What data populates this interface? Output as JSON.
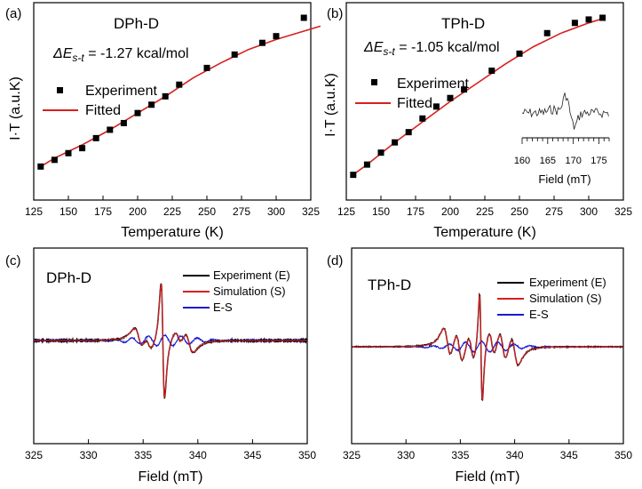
{
  "chart_data": [
    {
      "type": "scatter",
      "panel_label": "(a)",
      "title": "DPh-D",
      "annotation_prefix": "ΔE",
      "annotation_sub": "s-t",
      "annotation_value": " = -1.27 kcal/mol",
      "xlabel": "Temperature (K)",
      "ylabel": "I·T (a.u.K)",
      "xlim": [
        125,
        325
      ],
      "ylim": [
        0,
        1
      ],
      "xticks": [
        125,
        150,
        175,
        200,
        225,
        250,
        275,
        300,
        325
      ],
      "xtick_labels": [
        "125",
        "150",
        "175",
        "200",
        "225",
        "250",
        "275",
        "300",
        "325"
      ],
      "legend": [
        "Experiment",
        "Fitted"
      ],
      "series": [
        {
          "name": "Experiment",
          "x": [
            130,
            140,
            150,
            160,
            170,
            180,
            190,
            200,
            210,
            220,
            230,
            250,
            270,
            290,
            300,
            320
          ],
          "y": [
            0.11,
            0.15,
            0.19,
            0.22,
            0.28,
            0.33,
            0.37,
            0.43,
            0.48,
            0.53,
            0.6,
            0.7,
            0.78,
            0.85,
            0.89,
            1.0
          ]
        },
        {
          "name": "Fitted",
          "x": [
            128,
            140,
            160,
            180,
            200,
            220,
            240,
            260,
            280,
            300,
            320,
            332
          ],
          "y": [
            0.1,
            0.16,
            0.24,
            0.33,
            0.43,
            0.53,
            0.64,
            0.73,
            0.81,
            0.87,
            0.92,
            0.95
          ]
        }
      ]
    },
    {
      "type": "scatter",
      "panel_label": "(b)",
      "title": "TPh-D",
      "annotation_prefix": "ΔE",
      "annotation_sub": "s-t",
      "annotation_value": " = -1.05 kcal/mol",
      "xlabel": "Temperature (K)",
      "ylabel": "I·T (a.u.K)",
      "xlim": [
        125,
        325
      ],
      "ylim": [
        0,
        1
      ],
      "xticks": [
        125,
        150,
        175,
        200,
        225,
        250,
        275,
        300,
        325
      ],
      "xtick_labels": [
        "125",
        "150",
        "175",
        "200",
        "225",
        "250",
        "275",
        "300",
        "325"
      ],
      "legend": [
        "Experiment",
        "Fitted"
      ],
      "series": [
        {
          "name": "Experiment",
          "x": [
            130,
            140,
            150,
            160,
            170,
            180,
            190,
            200,
            210,
            230,
            250,
            270,
            290,
            300,
            310
          ],
          "y": [
            0.08,
            0.14,
            0.21,
            0.27,
            0.33,
            0.41,
            0.48,
            0.53,
            0.58,
            0.69,
            0.79,
            0.91,
            0.97,
            0.99,
            1.0
          ]
        },
        {
          "name": "Fitted",
          "x": [
            128,
            140,
            160,
            180,
            200,
            220,
            240,
            260,
            280,
            300,
            312
          ],
          "y": [
            0.07,
            0.14,
            0.27,
            0.39,
            0.51,
            0.62,
            0.73,
            0.83,
            0.91,
            0.97,
            1.0
          ]
        }
      ],
      "inset": {
        "xlabel": "Field (mT)",
        "xlim": [
          160,
          177
        ],
        "xticks": [
          160,
          165,
          170,
          175
        ],
        "xtick_labels": [
          "160",
          "165",
          "170",
          "175"
        ]
      }
    },
    {
      "type": "line",
      "panel_label": "(c)",
      "title": "DPh-D",
      "xlabel": "Field (mT)",
      "xlim": [
        325,
        350
      ],
      "xticks": [
        325,
        330,
        335,
        340,
        345,
        350
      ],
      "xtick_labels": [
        "325",
        "330",
        "335",
        "340",
        "345",
        "350"
      ],
      "legend": [
        "Experiment (E)",
        "Simulation (S)",
        "E-S"
      ],
      "series": [
        {
          "name": "Experiment (E)",
          "color": "#000000"
        },
        {
          "name": "Simulation (S)",
          "color": "#d62020"
        },
        {
          "name": "E-S",
          "color": "#1a1ad0"
        }
      ]
    },
    {
      "type": "line",
      "panel_label": "(d)",
      "title": "TPh-D",
      "xlabel": "Field (mT)",
      "xlim": [
        325,
        350
      ],
      "xticks": [
        325,
        330,
        335,
        340,
        345,
        350
      ],
      "xtick_labels": [
        "325",
        "330",
        "335",
        "340",
        "345",
        "350"
      ],
      "legend": [
        "Experiment (E)",
        "Simulation (S)",
        "E-S"
      ],
      "series": [
        {
          "name": "Experiment (E)",
          "color": "#000000"
        },
        {
          "name": "Simulation (S)",
          "color": "#d62020"
        },
        {
          "name": "E-S",
          "color": "#1a1ad0"
        }
      ]
    }
  ],
  "colors": {
    "fit": "#d62020",
    "points": "#000000",
    "es": "#1a1ad0"
  }
}
